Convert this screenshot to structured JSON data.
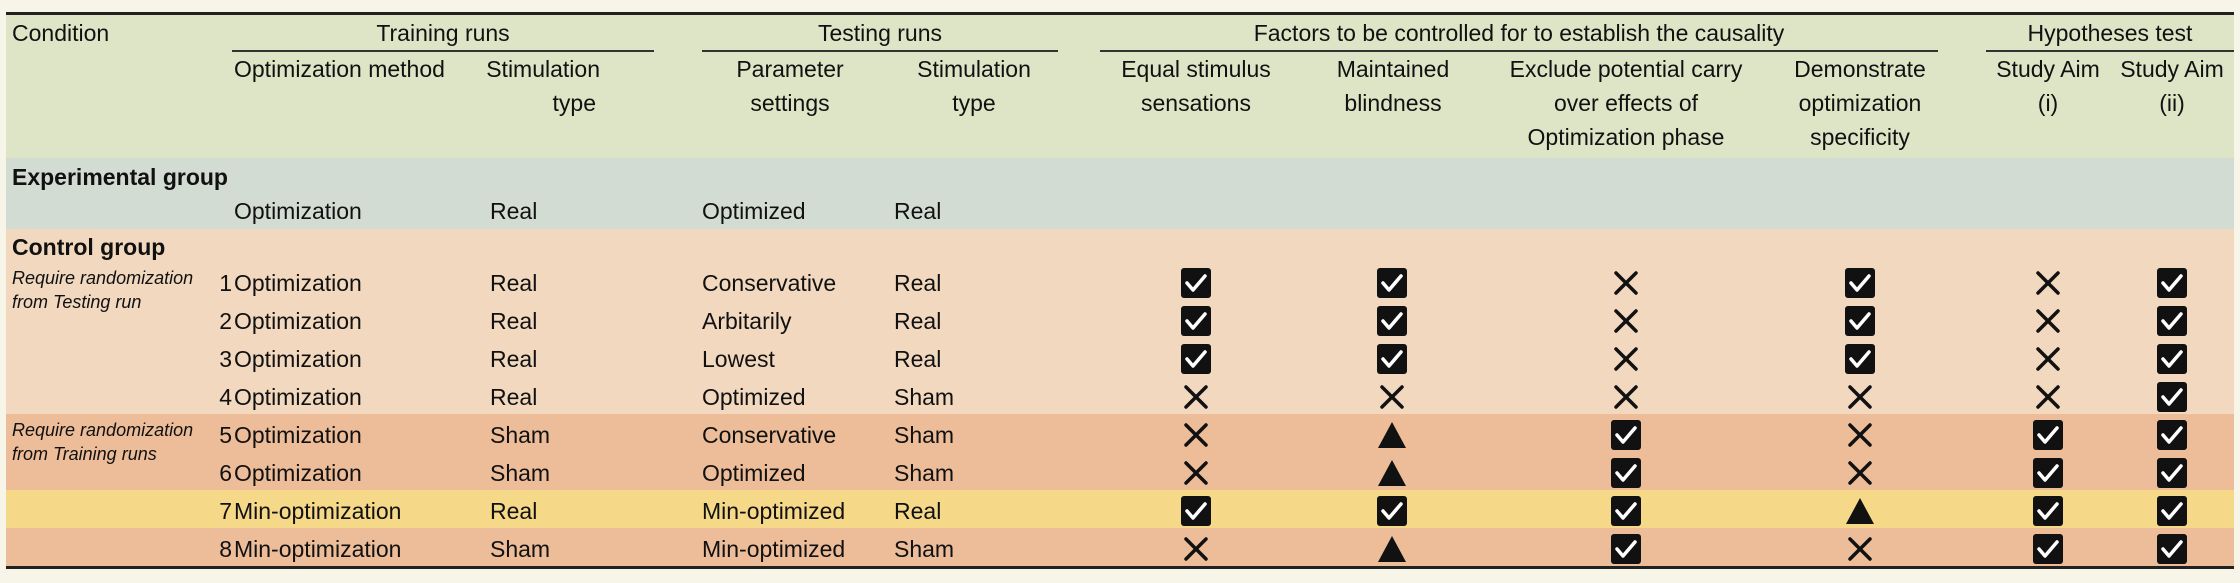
{
  "header": {
    "condition": "Condition",
    "training_runs": "Training runs",
    "testing_runs": "Testing runs",
    "factors": "Factors to be controlled for to establish the causality",
    "hypotheses": "Hypotheses test",
    "sub": {
      "optimization_method": "Optimization method",
      "stim_type_train": [
        "Stimulation",
        "type"
      ],
      "parameter_settings": [
        "Parameter",
        "settings"
      ],
      "stim_type_test": [
        "Stimulation",
        "type"
      ],
      "equal_stimulus": [
        "Equal stimulus",
        "sensations"
      ],
      "maintained_blindness": [
        "Maintained",
        "blindness"
      ],
      "exclude_carry": [
        "Exclude potential carry",
        "over effects of",
        "Optimization phase"
      ],
      "demonstrate": [
        "Demonstrate",
        "optimization",
        "specificity"
      ],
      "aim1": [
        "Study Aim",
        "(i)"
      ],
      "aim2": [
        "Study Aim",
        "(ii)"
      ]
    }
  },
  "experimental_group": {
    "title": "Experimental group",
    "row": {
      "method": "Optimization",
      "stim_train": "Real",
      "params": "Optimized",
      "stim_test": "Real"
    }
  },
  "control_group": {
    "title": "Control group",
    "note_testing": "Require randomization from Testing run",
    "note_training": "Require randomization from Training runs",
    "rows": [
      {
        "num": "1",
        "method": "Optimization",
        "stim_train": "Real",
        "params": "Conservative",
        "stim_test": "Real",
        "marks": [
          "check",
          "check",
          "cross",
          "check",
          "cross",
          "check"
        ]
      },
      {
        "num": "2",
        "method": "Optimization",
        "stim_train": "Real",
        "params": "Arbitarily",
        "stim_test": "Real",
        "marks": [
          "check",
          "check",
          "cross",
          "check",
          "cross",
          "check"
        ]
      },
      {
        "num": "3",
        "method": "Optimization",
        "stim_train": "Real",
        "params": "Lowest",
        "stim_test": "Real",
        "marks": [
          "check",
          "check",
          "cross",
          "check",
          "cross",
          "check"
        ]
      },
      {
        "num": "4",
        "method": "Optimization",
        "stim_train": "Real",
        "params": "Optimized",
        "stim_test": "Sham",
        "marks": [
          "cross",
          "cross",
          "cross",
          "cross",
          "cross",
          "check"
        ]
      },
      {
        "num": "5",
        "method": "Optimization",
        "stim_train": "Sham",
        "params": "Conservative",
        "stim_test": "Sham",
        "marks": [
          "cross",
          "triangle",
          "check",
          "cross",
          "check",
          "check"
        ]
      },
      {
        "num": "6",
        "method": "Optimization",
        "stim_train": "Sham",
        "params": "Optimized",
        "stim_test": "Sham",
        "marks": [
          "cross",
          "triangle",
          "check",
          "cross",
          "check",
          "check"
        ]
      },
      {
        "num": "7",
        "method": "Min-optimization",
        "stim_train": "Real",
        "params": "Min-optimized",
        "stim_test": "Real",
        "marks": [
          "check",
          "check",
          "check",
          "triangle",
          "check",
          "check"
        ]
      },
      {
        "num": "8",
        "method": "Min-optimization",
        "stim_train": "Sham",
        "params": "Min-optimized",
        "stim_test": "Sham",
        "marks": [
          "cross",
          "triangle",
          "check",
          "cross",
          "check",
          "check"
        ]
      }
    ]
  },
  "colors": {
    "header_bg": "#dde5c6",
    "experimental_bg": "#d3dcd3",
    "control_light_bg": "#f2d8bf",
    "control_dark_bg": "#ecbd98",
    "highlight_bg": "#f5d888"
  }
}
